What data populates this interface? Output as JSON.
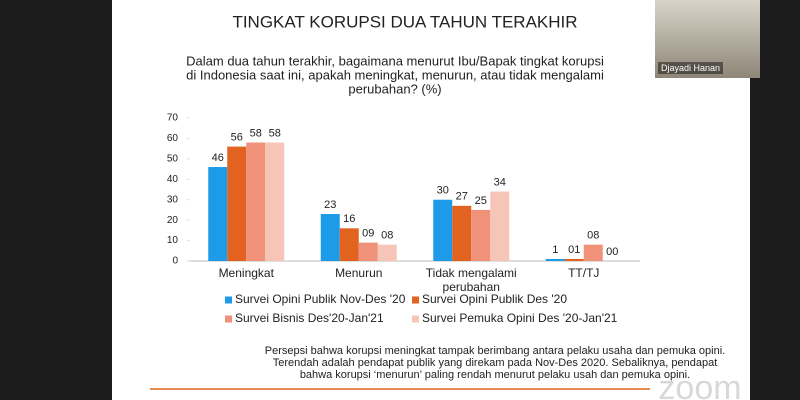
{
  "chart_data": {
    "type": "bar",
    "title": "TINGKAT KORUPSI DUA TAHUN TERAKHIR",
    "subtitle": [
      "Dalam dua tahun terakhir, bagaimana menurut Ibu/Bapak tingkat korupsi",
      "di Indonesia saat ini, apakah meningkat, menurun, atau tidak mengalami",
      "perubahan? (%)"
    ],
    "categories": [
      "Meningkat",
      "Menurun",
      "Tidak mengalami perubahan",
      "TT/TJ"
    ],
    "series": [
      {
        "name": "Survei Opini Publik Nov-Des '20",
        "color": "#1e9be8",
        "values": [
          46,
          23,
          30,
          1
        ]
      },
      {
        "name": "Survei Opini Publik Des '20",
        "color": "#e2621f",
        "values": [
          56,
          16,
          27,
          1
        ],
        "value_labels": [
          "56",
          "16",
          "27",
          "01"
        ]
      },
      {
        "name": "Survei Bisnis Des'20-Jan'21",
        "color": "#f0917a",
        "values": [
          58,
          9,
          25,
          8
        ],
        "value_labels": [
          "58",
          "09",
          "25",
          "08"
        ]
      },
      {
        "name": "Survei Pemuka Opini Des '20-Jan'21",
        "color": "#f7c5b8",
        "values": [
          58,
          8,
          34,
          0
        ],
        "value_labels": [
          "58",
          "08",
          "34",
          "00"
        ]
      }
    ],
    "ylim": [
      0,
      70
    ],
    "yticks": [
      0,
      10,
      20,
      30,
      40,
      50,
      60,
      70
    ],
    "grid": false
  },
  "notes": [
    "Persepsi bahwa korupsi meningkat tampak berimbang antara pelaku usaha dan pemuka opini.",
    "Terendah adalah pendapat publik yang direkam pada Nov-Des 2020. Sebaliknya, pendapat",
    "bahwa korupsi ‘menurun’ paling rendah menurut pelaku usah dan pemuka opini."
  ],
  "video": {
    "name": "Djayadi Hanan"
  },
  "watermark": "zoom"
}
